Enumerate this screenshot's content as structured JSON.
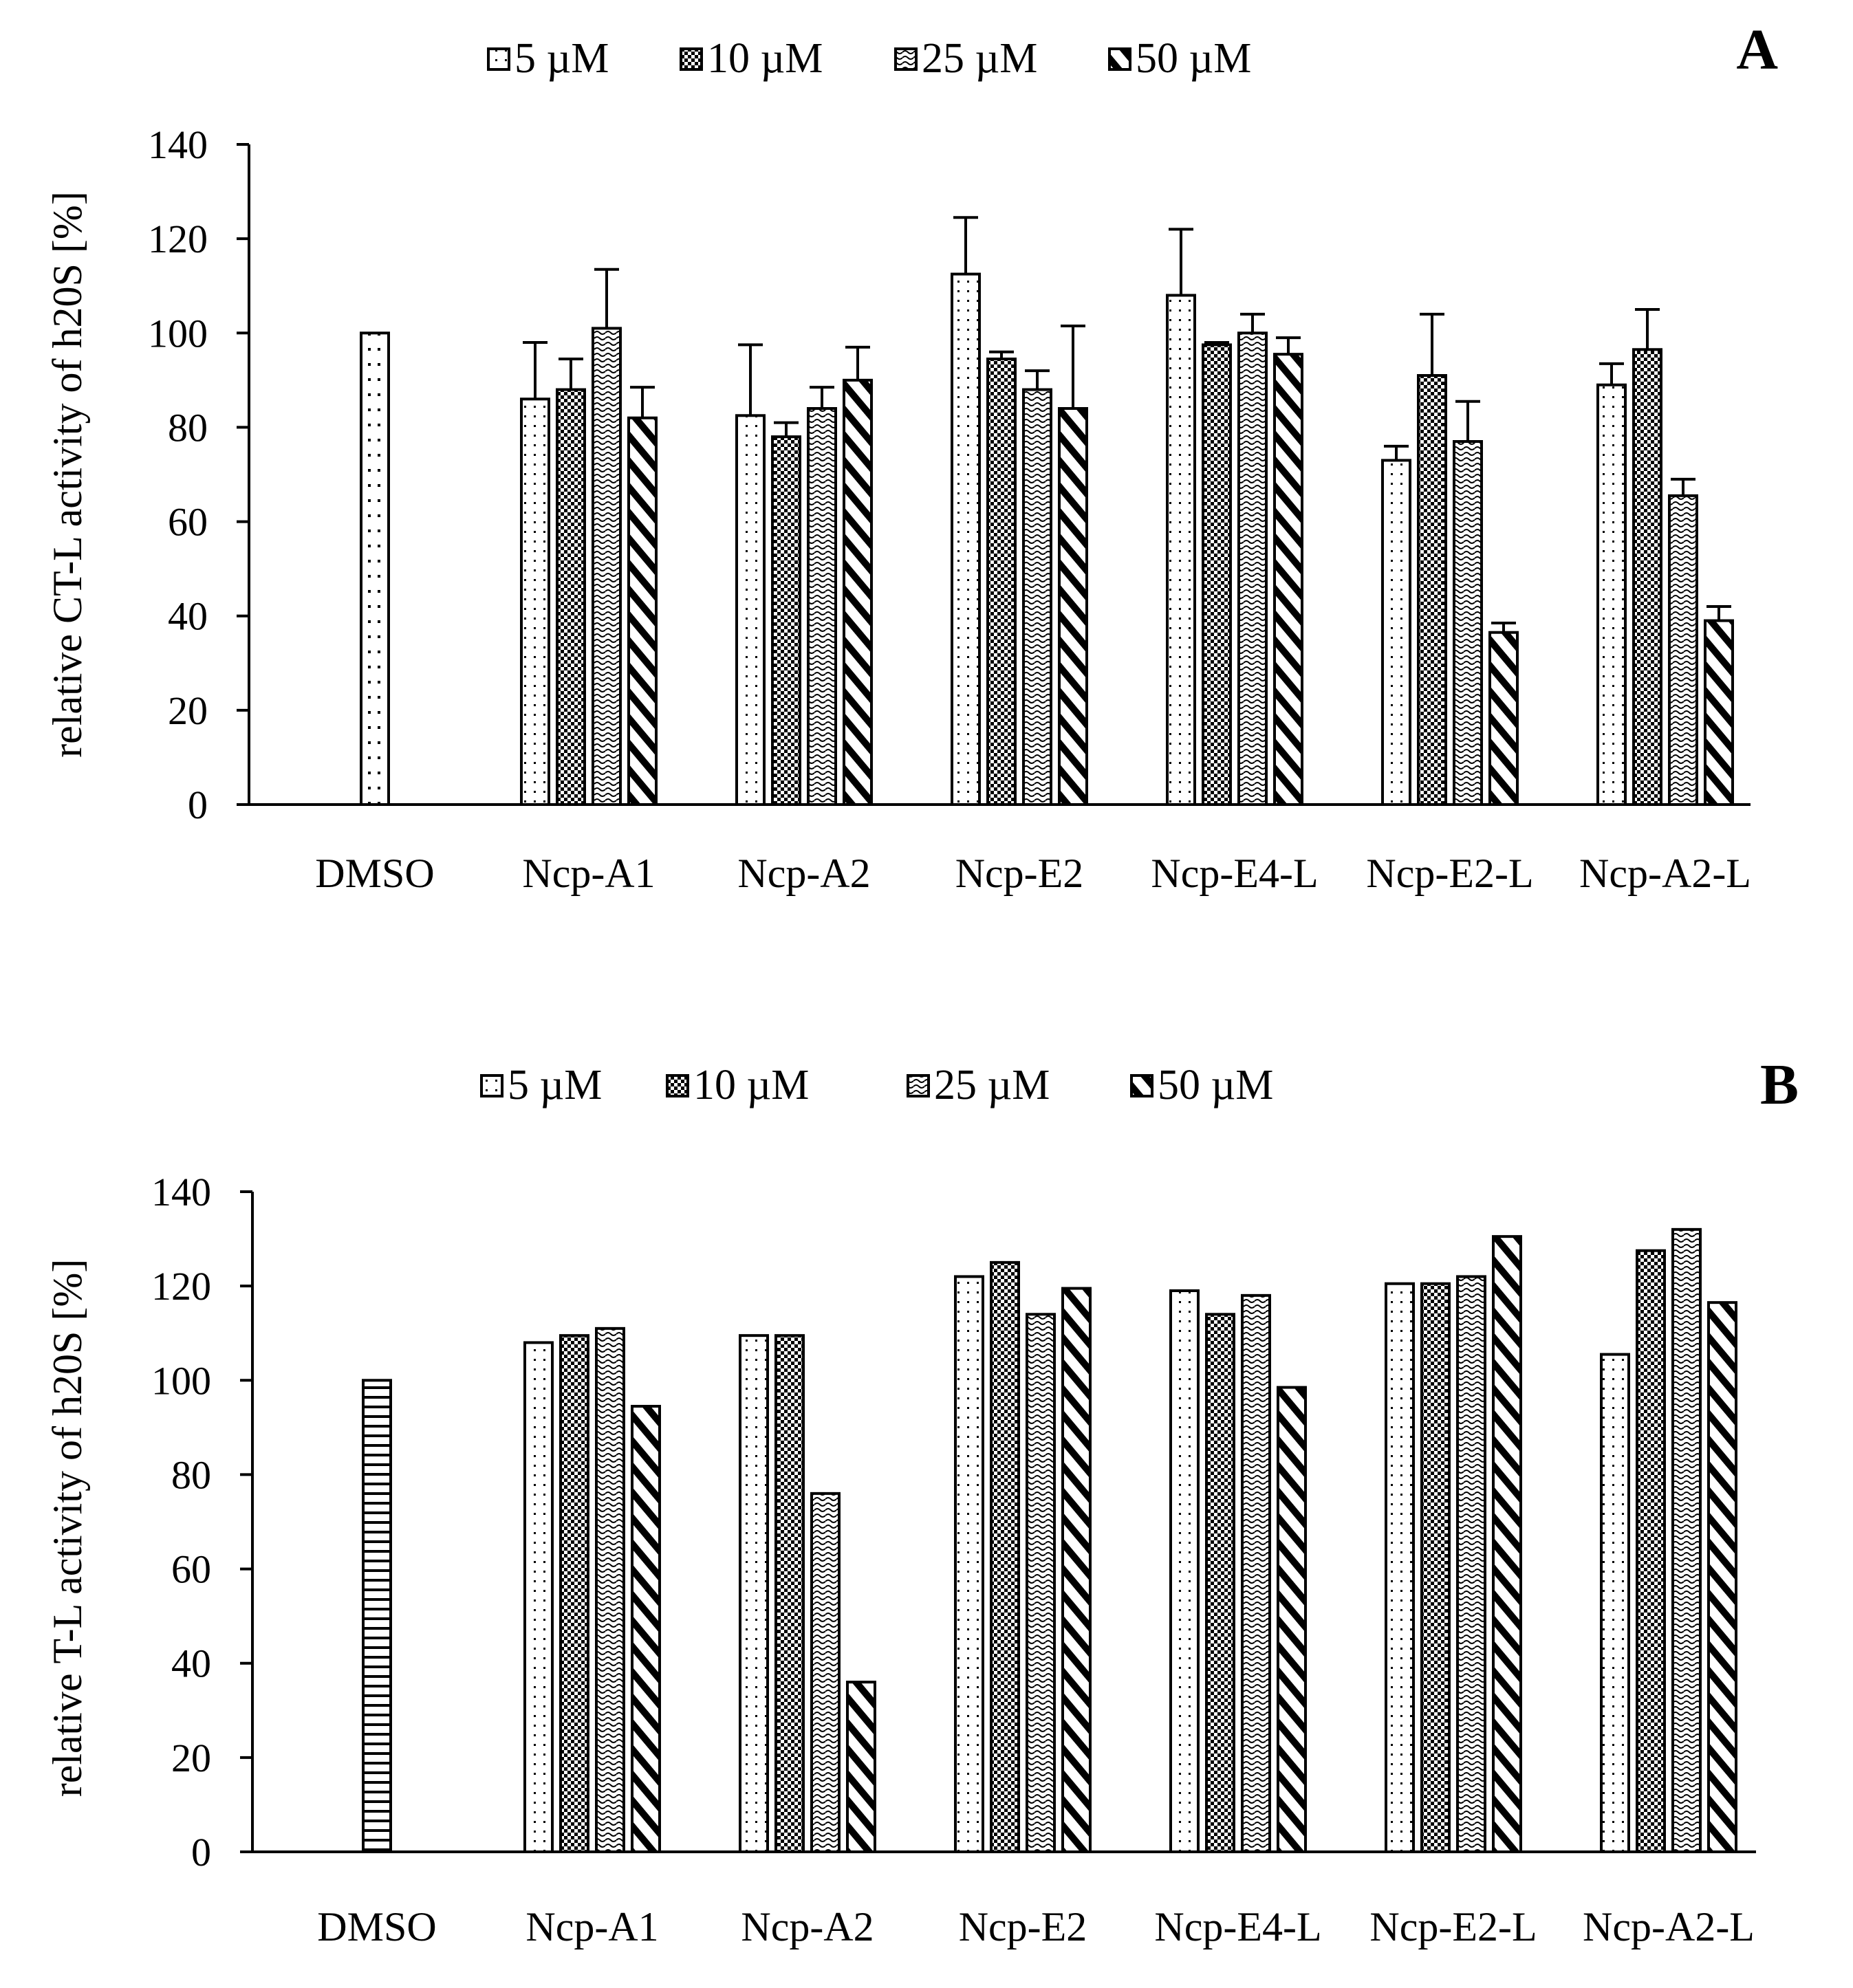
{
  "chart_data": [
    {
      "type": "bar",
      "panel_label": "A",
      "ylabel": "relative CT-L activity of h20S [%]",
      "xlabel": "",
      "ylim": [
        0,
        140
      ],
      "yticks": [
        0,
        20,
        40,
        60,
        80,
        100,
        120,
        140
      ],
      "legend_position": "top-center",
      "categories": [
        "DMSO",
        "Ncp-A1",
        "Ncp-A2",
        "Ncp-E2",
        "Ncp-E4-L",
        "Ncp-E2-L",
        "Ncp-A2-L"
      ],
      "control": {
        "category": "DMSO",
        "value": 100,
        "pattern": "vdots"
      },
      "series": [
        {
          "name": "5 µM",
          "pattern": "dots",
          "values": [
            null,
            86,
            82.5,
            112.5,
            108,
            73,
            89
          ],
          "errors": [
            null,
            12,
            15,
            12,
            14,
            3,
            4.5
          ]
        },
        {
          "name": "10 µM",
          "pattern": "check",
          "values": [
            null,
            88,
            78,
            94.5,
            97.5,
            91,
            96.5
          ],
          "errors": [
            null,
            6.5,
            3,
            1.5,
            0.5,
            13,
            8.5
          ]
        },
        {
          "name": "25 µM",
          "pattern": "wave",
          "values": [
            null,
            101,
            84,
            88,
            100,
            77,
            65.5
          ],
          "errors": [
            null,
            12.5,
            4.5,
            4,
            4,
            8.5,
            3.5
          ]
        },
        {
          "name": "50 µM",
          "pattern": "diag",
          "values": [
            null,
            82,
            90,
            84,
            95.5,
            36.5,
            39
          ],
          "errors": [
            null,
            6.5,
            7,
            17.5,
            3.5,
            2,
            3
          ]
        }
      ]
    },
    {
      "type": "bar",
      "panel_label": "B",
      "ylabel": "relative T-L activity of h20S [%]",
      "xlabel": "",
      "ylim": [
        0,
        140
      ],
      "yticks": [
        0,
        20,
        40,
        60,
        80,
        100,
        120,
        140
      ],
      "legend_position": "top-center",
      "categories": [
        "DMSO",
        "Ncp-A1",
        "Ncp-A2",
        "Ncp-E2",
        "Ncp-E4-L",
        "Ncp-E2-L",
        "Ncp-A2-L"
      ],
      "control": {
        "category": "DMSO",
        "value": 100,
        "pattern": "hlines"
      },
      "series": [
        {
          "name": "5 µM",
          "pattern": "dots",
          "values": [
            null,
            108,
            109.5,
            122,
            119,
            120.5,
            105.5
          ]
        },
        {
          "name": "10 µM",
          "pattern": "check",
          "values": [
            null,
            109.5,
            109.5,
            125,
            114,
            120.5,
            127.5
          ]
        },
        {
          "name": "25 µM",
          "pattern": "wave",
          "values": [
            null,
            111,
            76,
            114,
            118,
            122,
            132
          ]
        },
        {
          "name": "50 µM",
          "pattern": "diag",
          "values": [
            null,
            94.5,
            36,
            119.5,
            98.5,
            130.5,
            116.5
          ]
        }
      ]
    }
  ]
}
